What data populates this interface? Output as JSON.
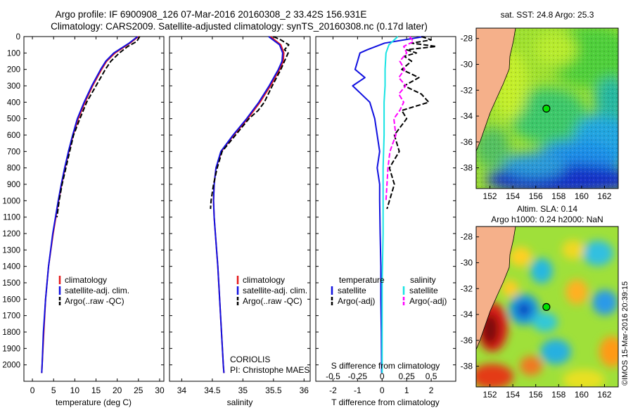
{
  "header": {
    "line1": "Argo profile: IF 6900908_126 07-Mar-2016 20160308_2 33.42S 156.931E",
    "line2": "Climatology: CARS2009. Satellite-adjusted climatology: synTS_20160308.nc (0.17d later)"
  },
  "colors": {
    "climatology": "#e41a1c",
    "satellite": "#1010e0",
    "argo": "#000000",
    "sat_salinity": "#17e3e3",
    "argo_salinity": "#ff00ff"
  },
  "chart_data": [
    {
      "type": "line",
      "id": "temperature",
      "xlabel": "temperature (deg C)",
      "xlim": [
        -2,
        31
      ],
      "ylim": [
        2100,
        0
      ],
      "y_reversed": true,
      "xticks": [
        "0",
        "5",
        "10",
        "15",
        "20",
        "25",
        "30"
      ],
      "xtick_values": [
        0,
        5,
        10,
        15,
        20,
        25,
        30
      ],
      "yticks": [
        "0",
        "100",
        "200",
        "300",
        "400",
        "500",
        "600",
        "700",
        "800",
        "900",
        "1000",
        "1100",
        "1200",
        "1300",
        "1400",
        "1500",
        "1600",
        "1700",
        "1800",
        "1900",
        "2000"
      ],
      "ytick_values": [
        0,
        100,
        200,
        300,
        400,
        500,
        600,
        700,
        800,
        900,
        1000,
        1100,
        1200,
        1300,
        1400,
        1500,
        1600,
        1700,
        1800,
        1900,
        2000
      ],
      "legend": [
        "climatology",
        "satellite-adj. clim.",
        "Argo(..raw -QC)"
      ],
      "series": [
        {
          "name": "climatology",
          "depth": [
            0,
            40,
            100,
            150,
            200,
            300,
            400,
            500,
            600,
            700,
            800,
            900,
            1000,
            1200,
            1400,
            1600,
            1800,
            2000,
            2050
          ],
          "values": [
            25.0,
            23.0,
            19.5,
            17.5,
            16.3,
            14.2,
            12.4,
            10.8,
            9.6,
            8.6,
            7.7,
            6.9,
            6.2,
            4.9,
            3.8,
            3.1,
            2.7,
            2.3,
            2.2
          ]
        },
        {
          "name": "satellite-adj. clim.",
          "depth": [
            0,
            40,
            100,
            150,
            200,
            300,
            400,
            500,
            600,
            700,
            800,
            900,
            1000,
            1200,
            1400,
            1600,
            1800,
            2000,
            2050
          ],
          "values": [
            24.8,
            22.8,
            19.2,
            17.3,
            16.1,
            14.0,
            12.2,
            10.6,
            9.5,
            8.5,
            7.6,
            6.8,
            6.1,
            4.8,
            3.8,
            3.1,
            2.6,
            2.3,
            2.2
          ]
        },
        {
          "name": "Argo(..raw -QC)",
          "depth": [
            0,
            30,
            60,
            100,
            150,
            200,
            300,
            400,
            500,
            600,
            700,
            800,
            900,
            1000,
            1100
          ],
          "values": [
            25.3,
            24.6,
            22.5,
            20.5,
            18.5,
            17.2,
            15.0,
            12.8,
            11.2,
            9.7,
            8.8,
            7.9,
            7.0,
            6.3,
            5.8
          ]
        }
      ]
    },
    {
      "type": "line",
      "id": "salinity",
      "xlabel": "salinity",
      "xlim": [
        33.8,
        36.1
      ],
      "ylim": [
        2100,
        0
      ],
      "y_reversed": true,
      "xticks": [
        "34",
        "34.5",
        "35",
        "35.5",
        "36"
      ],
      "xtick_values": [
        34,
        34.5,
        35,
        35.5,
        36
      ],
      "legend": [
        "climatology",
        "satellite-adj. clim.",
        "Argo(..raw -QC)"
      ],
      "series": [
        {
          "name": "climatology",
          "depth": [
            0,
            50,
            100,
            150,
            200,
            300,
            400,
            500,
            600,
            700,
            800,
            900,
            1000,
            1100,
            1200,
            1400,
            1600,
            1800,
            2000,
            2050
          ],
          "values": [
            35.45,
            35.62,
            35.67,
            35.66,
            35.6,
            35.45,
            35.28,
            35.08,
            34.85,
            34.65,
            34.56,
            34.53,
            34.52,
            34.53,
            34.55,
            34.59,
            34.62,
            34.65,
            34.68,
            34.69
          ]
        },
        {
          "name": "satellite-adj. clim.",
          "depth": [
            0,
            50,
            100,
            150,
            200,
            300,
            400,
            500,
            600,
            700,
            800,
            900,
            1000,
            1100,
            1200,
            1400,
            1600,
            1800,
            2000,
            2050
          ],
          "values": [
            35.42,
            35.6,
            35.65,
            35.64,
            35.58,
            35.43,
            35.26,
            35.06,
            34.84,
            34.64,
            34.56,
            34.53,
            34.52,
            34.53,
            34.55,
            34.59,
            34.62,
            34.65,
            34.68,
            34.69
          ]
        },
        {
          "name": "Argo(..raw -QC)",
          "depth": [
            0,
            20,
            50,
            80,
            100,
            150,
            200,
            300,
            400,
            450,
            500,
            600,
            700,
            800,
            900,
            1000,
            1050
          ],
          "values": [
            35.5,
            35.62,
            35.75,
            35.68,
            35.74,
            35.68,
            35.62,
            35.48,
            35.35,
            35.25,
            35.1,
            34.88,
            34.66,
            34.58,
            34.52,
            34.48,
            34.47
          ]
        }
      ],
      "annotation": [
        "CORIOLIS",
        "PI: Christophe MAES"
      ]
    },
    {
      "type": "line",
      "id": "difference",
      "xlabel": "T difference from climatology",
      "xlabel_top": "S difference from climatology",
      "xlim": [
        -2.7,
        3.0
      ],
      "ylim": [
        2100,
        0
      ],
      "y_reversed": true,
      "xticks": [
        "-2",
        "-1",
        "0",
        "1",
        "2"
      ],
      "xtick_values": [
        -2,
        -1,
        0,
        1,
        2
      ],
      "xticks_top": [
        "-0.5",
        "-0.25",
        "0",
        "0.25",
        "0.5"
      ],
      "xticks_top_values": [
        -0.5,
        -0.25,
        0,
        0.25,
        0.5
      ],
      "legend_groups": [
        "temperature",
        "salinity"
      ],
      "legend": [
        "satellite",
        "Argo(-adj)",
        "satellite",
        "Argo(-adj)"
      ],
      "series": [
        {
          "name": "temperature satellite",
          "depth": [
            0,
            40,
            80,
            100,
            150,
            200,
            250,
            300,
            400,
            500,
            600,
            700,
            800,
            900,
            1000,
            1200,
            1400,
            1600,
            1800,
            2050
          ],
          "values": [
            1.7,
            0.1,
            -0.6,
            -0.9,
            -1.0,
            -1.1,
            -0.7,
            -1.2,
            -0.5,
            -0.3,
            -0.2,
            -0.1,
            -0.2,
            -0.1,
            -0.1,
            -0.08,
            -0.05,
            -0.05,
            -0.03,
            -0.02
          ]
        },
        {
          "name": "temperature Argo(-adj)",
          "depth": [
            0,
            20,
            40,
            60,
            80,
            100,
            120,
            150,
            200,
            250,
            300,
            350,
            400,
            450,
            500,
            600,
            700,
            800,
            900,
            1000,
            1050
          ],
          "values": [
            1.6,
            2.0,
            1.2,
            2.2,
            1.0,
            1.4,
            0.9,
            1.2,
            0.8,
            1.5,
            0.9,
            1.6,
            1.9,
            0.8,
            1.0,
            0.5,
            0.7,
            0.3,
            0.5,
            0.3,
            0.2
          ]
        },
        {
          "name": "salinity satellite",
          "depth": [
            0,
            50,
            100,
            200,
            300,
            400,
            500,
            600,
            800,
            1000,
            1200,
            1500,
            1800,
            2050
          ],
          "values": [
            0.16,
            0.07,
            0.04,
            0.03,
            0.03,
            0.02,
            0.02,
            0.02,
            0.01,
            0.01,
            0.01,
            0.0,
            0.0,
            0.0
          ]
        },
        {
          "name": "salinity Argo(-adj)",
          "depth": [
            0,
            30,
            60,
            100,
            150,
            200,
            250,
            300,
            350,
            400,
            450,
            500,
            600,
            700,
            800,
            900,
            1000
          ],
          "values": [
            0.28,
            0.32,
            0.22,
            0.25,
            0.18,
            0.23,
            0.17,
            0.24,
            0.17,
            0.22,
            0.18,
            0.12,
            0.14,
            0.08,
            0.06,
            0.05,
            0.04
          ]
        }
      ]
    },
    {
      "type": "heatmap",
      "id": "sst_map",
      "title": "sat. SST: 24.8 Argo: 25.3",
      "xticks": [
        "152",
        "154",
        "156",
        "158",
        "160",
        "162"
      ],
      "xtick_values": [
        152,
        154,
        156,
        158,
        160,
        162
      ],
      "yticks": [
        "-28",
        "-30",
        "-32",
        "-34",
        "-36",
        "-38"
      ],
      "ytick_values": [
        -28,
        -30,
        -32,
        -34,
        -36,
        -38
      ],
      "xlim": [
        150.8,
        163.2
      ],
      "ylim": [
        -39.6,
        -27.2
      ],
      "argo_marker": {
        "lon": 156.93,
        "lat": -33.42
      }
    },
    {
      "type": "heatmap",
      "id": "sla_map",
      "title": "Altim. SLA: 0.14",
      "subtitle": "Argo h1000: 0.24 h2000: NaN",
      "xticks": [
        "152",
        "154",
        "156",
        "158",
        "160",
        "162"
      ],
      "xtick_values": [
        152,
        154,
        156,
        158,
        160,
        162
      ],
      "yticks": [
        "-28",
        "-30",
        "-32",
        "-34",
        "-36",
        "-38"
      ],
      "ytick_values": [
        -28,
        -30,
        -32,
        -34,
        -36,
        -38
      ],
      "xlim": [
        150.8,
        163.2
      ],
      "ylim": [
        -39.6,
        -27.2
      ],
      "argo_marker": {
        "lon": 156.93,
        "lat": -33.42
      }
    }
  ],
  "credit": "©IMOS 15-Mar-2016 20:39:15"
}
